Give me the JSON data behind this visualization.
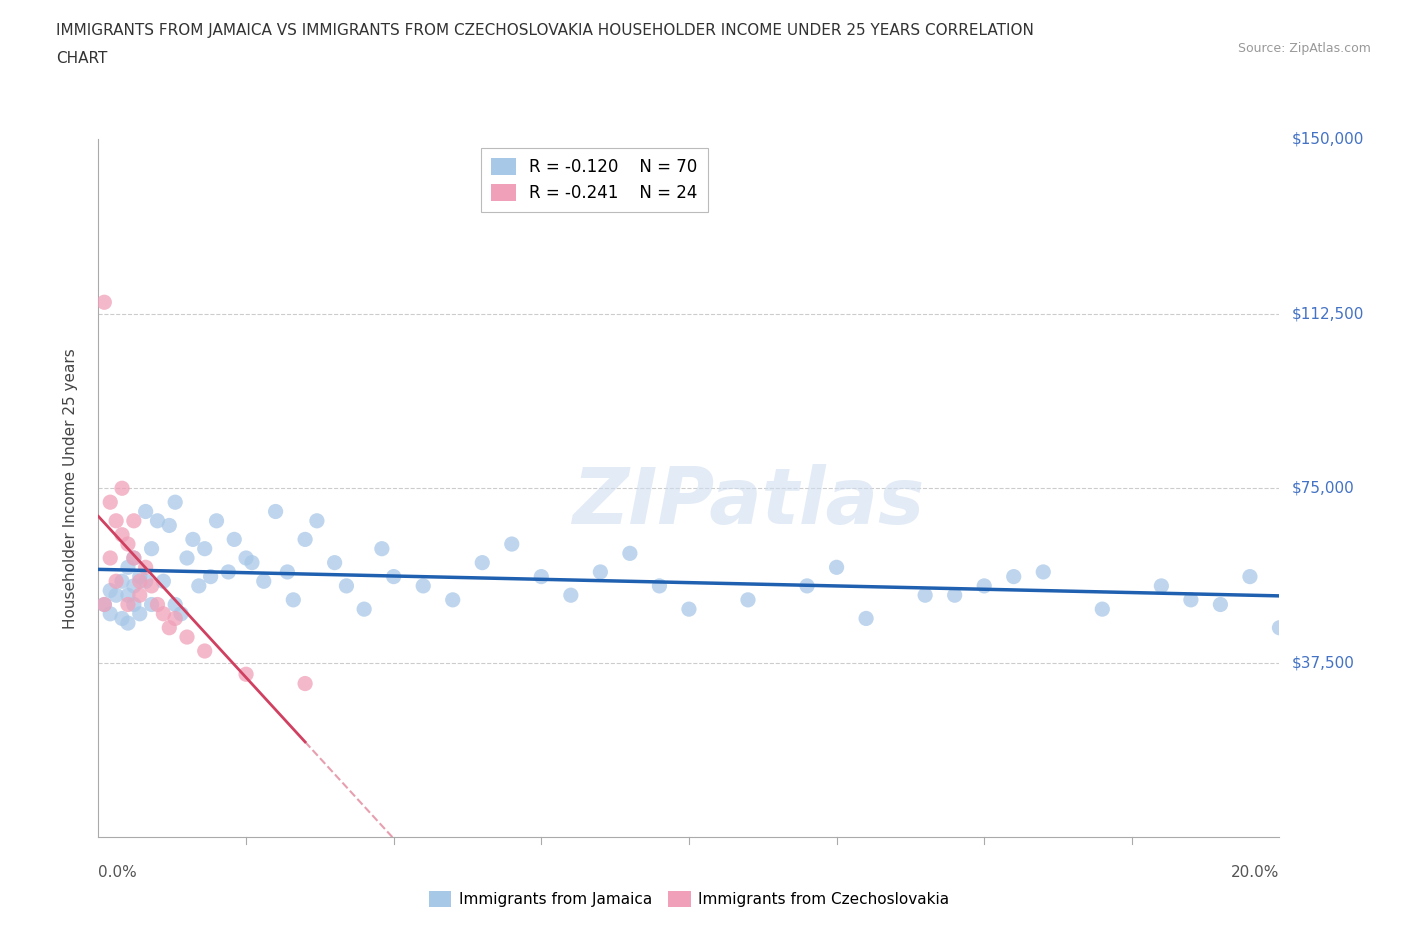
{
  "title_line1": "IMMIGRANTS FROM JAMAICA VS IMMIGRANTS FROM CZECHOSLOVAKIA HOUSEHOLDER INCOME UNDER 25 YEARS CORRELATION",
  "title_line2": "CHART",
  "source": "Source: ZipAtlas.com",
  "ylabel": "Householder Income Under 25 years",
  "legend_label1": "Immigrants from Jamaica",
  "legend_label2": "Immigrants from Czechoslovakia",
  "r1": -0.12,
  "n1": 70,
  "r2": -0.241,
  "n2": 24,
  "color_jamaica": "#A8C8E8",
  "color_czech": "#F0A0B8",
  "color_line_jamaica": "#2060B0",
  "color_line_czech": "#D04060",
  "color_ytick": "#4472C4",
  "xmin": 0.0,
  "xmax": 0.2,
  "ymin": 0,
  "ymax": 150000,
  "jamaica_x": [
    0.001,
    0.002,
    0.002,
    0.003,
    0.004,
    0.004,
    0.005,
    0.005,
    0.005,
    0.006,
    0.006,
    0.006,
    0.007,
    0.007,
    0.008,
    0.008,
    0.009,
    0.009,
    0.01,
    0.011,
    0.012,
    0.013,
    0.013,
    0.014,
    0.015,
    0.016,
    0.017,
    0.018,
    0.019,
    0.02,
    0.022,
    0.023,
    0.025,
    0.026,
    0.028,
    0.03,
    0.032,
    0.033,
    0.035,
    0.037,
    0.04,
    0.042,
    0.045,
    0.048,
    0.05,
    0.055,
    0.06,
    0.065,
    0.07,
    0.075,
    0.08,
    0.085,
    0.09,
    0.095,
    0.1,
    0.11,
    0.12,
    0.13,
    0.14,
    0.15,
    0.16,
    0.17,
    0.18,
    0.185,
    0.19,
    0.195,
    0.2,
    0.155,
    0.125,
    0.145
  ],
  "jamaica_y": [
    50000,
    48000,
    53000,
    52000,
    55000,
    47000,
    58000,
    52000,
    46000,
    54000,
    50000,
    60000,
    56000,
    48000,
    70000,
    55000,
    62000,
    50000,
    68000,
    55000,
    67000,
    72000,
    50000,
    48000,
    60000,
    64000,
    54000,
    62000,
    56000,
    68000,
    57000,
    64000,
    60000,
    59000,
    55000,
    70000,
    57000,
    51000,
    64000,
    68000,
    59000,
    54000,
    49000,
    62000,
    56000,
    54000,
    51000,
    59000,
    63000,
    56000,
    52000,
    57000,
    61000,
    54000,
    49000,
    51000,
    54000,
    47000,
    52000,
    54000,
    57000,
    49000,
    54000,
    51000,
    50000,
    56000,
    45000,
    56000,
    58000,
    52000
  ],
  "czech_x": [
    0.001,
    0.001,
    0.002,
    0.002,
    0.003,
    0.003,
    0.004,
    0.004,
    0.005,
    0.005,
    0.006,
    0.006,
    0.007,
    0.007,
    0.008,
    0.009,
    0.01,
    0.011,
    0.012,
    0.013,
    0.015,
    0.018,
    0.025,
    0.035
  ],
  "czech_y": [
    115000,
    50000,
    72000,
    60000,
    68000,
    55000,
    65000,
    75000,
    63000,
    50000,
    60000,
    68000,
    55000,
    52000,
    58000,
    54000,
    50000,
    48000,
    45000,
    47000,
    43000,
    40000,
    35000,
    33000
  ]
}
